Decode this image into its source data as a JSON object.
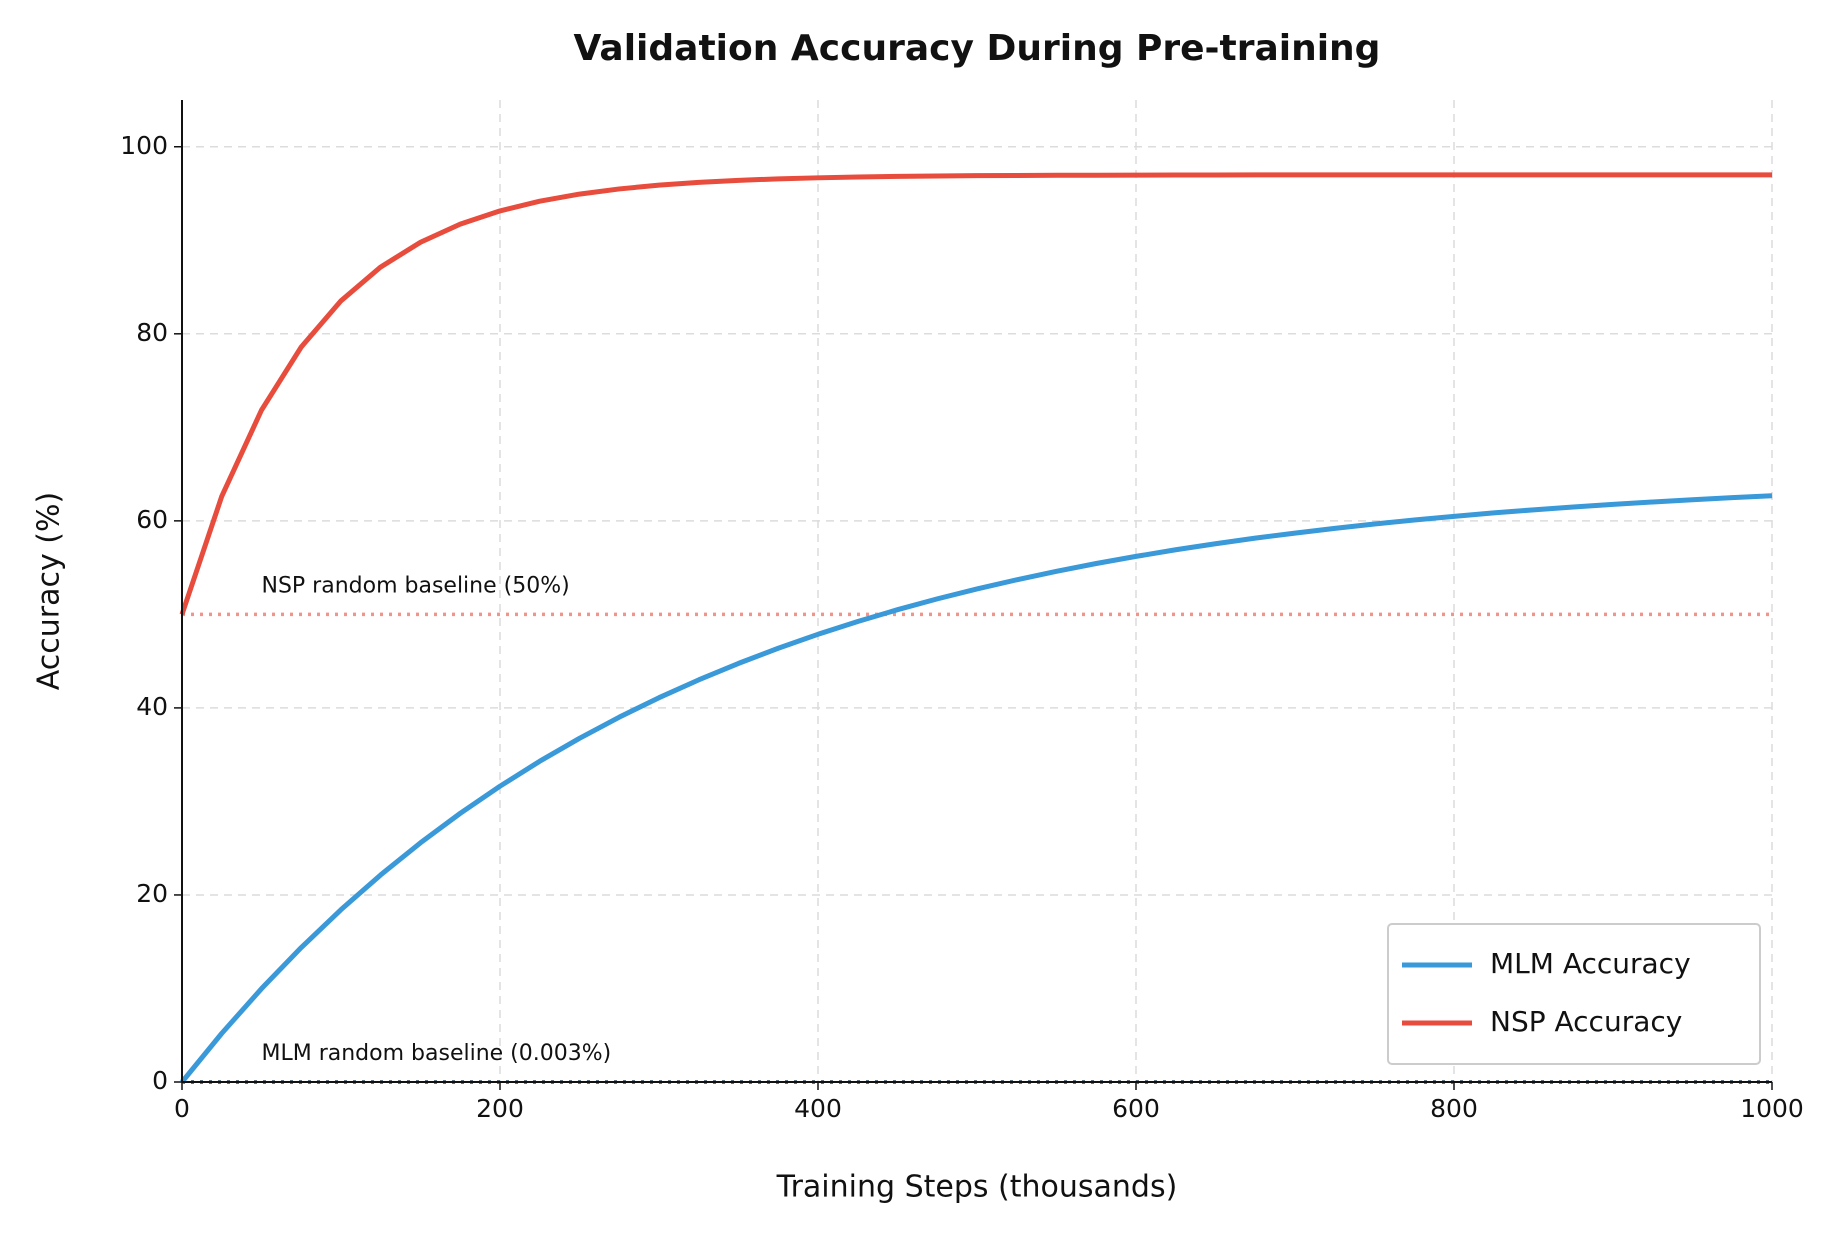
{
  "chart_data": {
    "type": "line",
    "title": "Validation Accuracy During Pre-training",
    "x_label": "Training Steps (thousands)",
    "y_label": "Accuracy (%)",
    "x": [
      0,
      25,
      50,
      75,
      100,
      125,
      150,
      175,
      200,
      225,
      250,
      275,
      300,
      325,
      350,
      375,
      400,
      425,
      450,
      475,
      500,
      525,
      550,
      575,
      600,
      625,
      650,
      675,
      700,
      725,
      750,
      775,
      800,
      825,
      850,
      875,
      900,
      925,
      950,
      975,
      1000
    ],
    "series": [
      {
        "name": "MLM Accuracy",
        "color": "#3a99d8",
        "values": [
          0,
          5.2,
          9.98,
          14.38,
          18.43,
          22.15,
          25.58,
          28.73,
          31.63,
          34.3,
          36.75,
          39.01,
          41.09,
          43.0,
          44.76,
          46.38,
          47.87,
          49.24,
          50.5,
          51.66,
          52.72,
          53.7,
          54.61,
          55.44,
          56.2,
          56.91,
          57.55,
          58.15,
          58.69,
          59.2,
          59.66,
          60.09,
          60.48,
          60.85,
          61.18,
          61.48,
          61.76,
          62.02,
          62.26,
          62.48,
          62.68
        ]
      },
      {
        "name": "NSP Accuracy",
        "color": "#e74c3c",
        "values": [
          50,
          62.62,
          71.84,
          78.59,
          83.53,
          87.15,
          89.79,
          91.73,
          93.14,
          94.18,
          94.94,
          95.49,
          95.9,
          96.19,
          96.41,
          96.57,
          96.68,
          96.77,
          96.83,
          96.88,
          96.91,
          96.93,
          96.95,
          96.96,
          96.97,
          96.98,
          96.98,
          96.99,
          96.99,
          97.0,
          97.0,
          97.0,
          97.0,
          97.0,
          97.0,
          97.0,
          97.0,
          97.0,
          97.0,
          97.0,
          97.0
        ]
      }
    ],
    "hlines": [
      {
        "value": 50,
        "color": "#f1948a",
        "label": "NSP random baseline (50%)"
      },
      {
        "value": 0.003,
        "color": "#2c3e50",
        "label": "MLM random baseline (0.003%)",
        "label_color": "#5dade2"
      }
    ],
    "xlim": [
      0,
      1000
    ],
    "ylim": [
      0,
      105
    ],
    "xticks": [
      0,
      200,
      400,
      600,
      800,
      1000
    ],
    "yticks": [
      0,
      20,
      40,
      60,
      80,
      100
    ],
    "grid": true,
    "legend": "lower right"
  }
}
